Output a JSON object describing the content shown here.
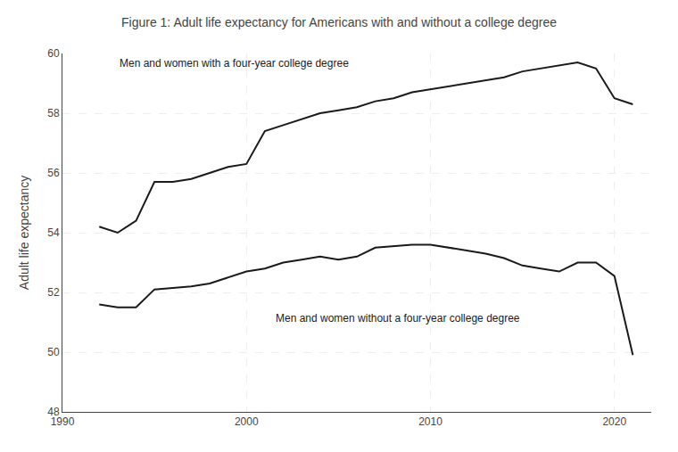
{
  "chart_data": {
    "type": "line",
    "title": "Figure 1: Adult life expectancy for Americans with and without a college degree",
    "ylabel": "Adult life expectancy",
    "x": [
      1992,
      1993,
      1994,
      1995,
      1996,
      1997,
      1998,
      1999,
      2000,
      2001,
      2002,
      2003,
      2004,
      2005,
      2006,
      2007,
      2008,
      2009,
      2010,
      2011,
      2012,
      2013,
      2014,
      2015,
      2016,
      2017,
      2018,
      2019,
      2020,
      2021
    ],
    "series": [
      {
        "color": "#1a1a1a",
        "values": [
          54.2,
          54.0,
          54.4,
          55.7,
          55.7,
          55.8,
          56.0,
          56.2,
          56.3,
          57.4,
          57.6,
          57.8,
          58.0,
          58.1,
          58.2,
          58.4,
          58.5,
          58.7,
          58.8,
          58.9,
          59.0,
          59.1,
          59.2,
          59.4,
          59.5,
          59.6,
          59.7,
          59.5,
          58.5,
          58.3
        ]
      },
      {
        "color": "#1a1a1a",
        "values": [
          51.6,
          51.5,
          51.5,
          52.1,
          52.15,
          52.2,
          52.3,
          52.5,
          52.7,
          52.8,
          53.0,
          53.1,
          53.2,
          53.1,
          53.2,
          53.5,
          53.55,
          53.6,
          53.6,
          53.5,
          53.4,
          53.3,
          53.15,
          52.9,
          52.8,
          52.7,
          53.0,
          53.0,
          52.55,
          49.9
        ]
      }
    ],
    "annotations": [
      {
        "text": "Men and women with a four-year college degree",
        "x": 1993.0,
        "y": 59.4
      },
      {
        "text": "Men and women without a four-year college degree",
        "x": 2001.5,
        "y": 51.4
      }
    ],
    "xlim": [
      1990,
      2022
    ],
    "ylim": [
      48,
      60
    ],
    "xticks": [
      1990,
      2000,
      2010,
      2020
    ],
    "yticks": [
      48,
      50,
      52,
      54,
      56,
      58,
      60
    ],
    "grid": true
  }
}
